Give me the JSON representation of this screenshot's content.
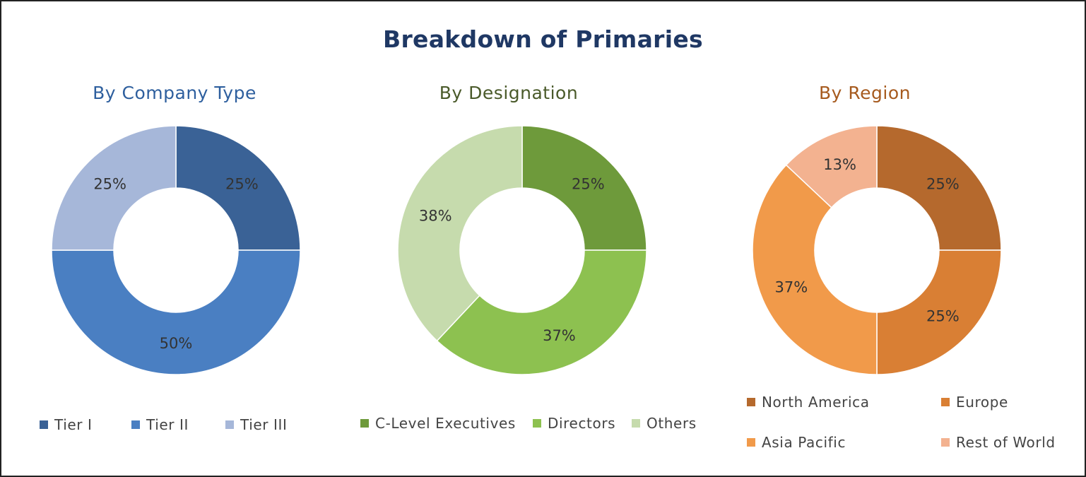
{
  "title": "Breakdown of Primaries",
  "chart_data": [
    {
      "type": "pie",
      "title": "By Company Type",
      "title_color": "#2e5f9e",
      "categories": [
        "Tier I",
        "Tier II",
        "Tier III"
      ],
      "values": [
        25,
        50,
        25
      ],
      "labels": [
        "25%",
        "50%",
        "25%"
      ],
      "colors": [
        "#3a6296",
        "#4a7fc2",
        "#a6b7d9"
      ],
      "legend": "bottom"
    },
    {
      "type": "pie",
      "title": "By Designation",
      "title_color": "#4a5a2a",
      "categories": [
        "C-Level Executives",
        "Directors",
        "Others"
      ],
      "values": [
        25,
        37,
        38
      ],
      "labels": [
        "25%",
        "37%",
        "38%"
      ],
      "colors": [
        "#6e9a3b",
        "#8dc150",
        "#c6dbad"
      ],
      "legend": "bottom"
    },
    {
      "type": "pie",
      "title": "By Region",
      "title_color": "#a65a1e",
      "categories": [
        "North America",
        "Europe",
        "Asia Pacific",
        "Rest of World"
      ],
      "values": [
        25,
        25,
        37,
        13
      ],
      "labels": [
        "25%",
        "25%",
        "37%",
        "13%"
      ],
      "colors": [
        "#b5692d",
        "#d97f34",
        "#f19a4a",
        "#f3b290"
      ],
      "legend": "bottom"
    }
  ]
}
